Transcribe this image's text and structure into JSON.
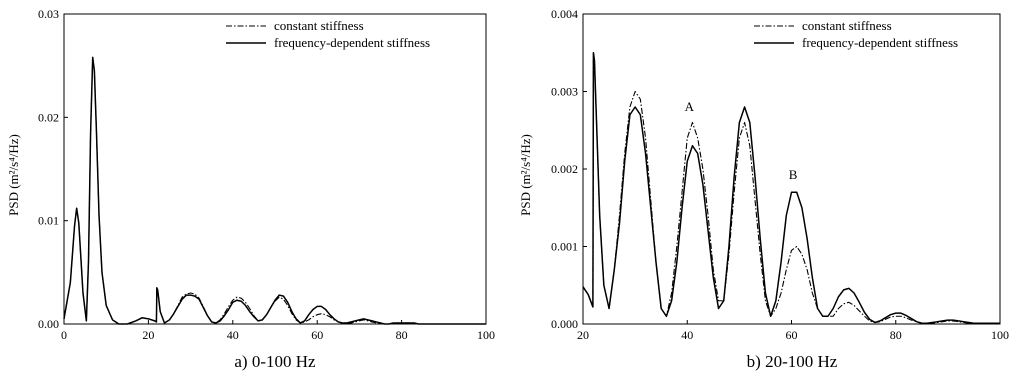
{
  "chart_data": [
    {
      "type": "line",
      "caption": "a) 0-100 Hz",
      "ylabel": "PSD (m²/s⁴/Hz)",
      "xlabel": "",
      "xlim": [
        0,
        100
      ],
      "ylim": [
        0,
        0.03
      ],
      "xticks": [
        0,
        20,
        40,
        60,
        80,
        100
      ],
      "yticks": [
        0.0,
        0.01,
        0.02,
        0.03
      ],
      "xtick_labels": [
        "0",
        "20",
        "40",
        "60",
        "80",
        "100"
      ],
      "ytick_labels": [
        "0.00",
        "0.01",
        "0.02",
        "0.03"
      ],
      "grid": false,
      "legend_position": "top-right",
      "series": [
        {
          "name": "constant stiffness",
          "style": "dash-dot",
          "x": [
            0,
            1.5,
            2.5,
            3.0,
            3.5,
            4.5,
            5.3,
            5.8,
            6.3,
            6.8,
            7.2,
            7.7,
            8.3,
            9.0,
            10.0,
            11.5,
            13.0,
            15.0,
            17.0,
            18.5,
            20.0,
            21.5,
            21.9,
            22.0,
            22.2,
            22.8,
            23.8,
            25.0,
            26.0,
            27.0,
            28.0,
            29.0,
            30.0,
            31.0,
            32.0,
            33.0,
            34.0,
            35.0,
            36.0,
            37.0,
            38.0,
            39.0,
            40.0,
            41.0,
            42.0,
            43.0,
            44.0,
            45.0,
            46.0,
            47.0,
            48.0,
            49.0,
            50.0,
            51.0,
            52.0,
            53.0,
            54.0,
            55.0,
            56.0,
            57.0,
            58.0,
            59.0,
            60.0,
            61.0,
            62.0,
            63.0,
            64.0,
            65.0,
            66.0,
            67.0,
            68.0,
            69.0,
            70.0,
            71.0,
            72.0,
            73.0,
            74.0,
            75.0,
            76.0,
            77.0,
            78.0,
            79.0,
            80.0,
            81.0,
            82.0,
            83.0,
            84.0,
            85.0,
            86.0,
            87.0,
            88.0,
            89.0,
            90.0,
            91.0,
            92.0,
            93.0,
            94.0,
            95.0,
            96.0,
            97.0,
            98.0,
            99.0,
            100.0
          ],
          "y": [
            0.0005,
            0.004,
            0.0095,
            0.0112,
            0.0098,
            0.003,
            0.0003,
            0.006,
            0.0185,
            0.0258,
            0.0245,
            0.0185,
            0.0105,
            0.005,
            0.0018,
            0.0004,
            0.0,
            0.0,
            0.0003,
            0.0006,
            0.0005,
            0.0003,
            0.0002,
            0.0035,
            0.0033,
            0.0012,
            0.0001,
            0.0004,
            0.001,
            0.0018,
            0.0026,
            0.0029,
            0.003,
            0.0029,
            0.0025,
            0.0017,
            0.0008,
            0.0002,
            0.0001,
            0.0004,
            0.001,
            0.0017,
            0.0023,
            0.0026,
            0.0025,
            0.0021,
            0.0015,
            0.0008,
            0.0003,
            0.0004,
            0.0009,
            0.0016,
            0.0022,
            0.0026,
            0.0024,
            0.0018,
            0.001,
            0.0004,
            0.0001,
            0.0002,
            0.0004,
            0.0007,
            0.0009,
            0.001,
            0.0009,
            0.0007,
            0.0004,
            0.0002,
            0.0001,
            0.0001,
            0.0001,
            0.0002,
            0.0003,
            0.0004,
            0.0003,
            0.0002,
            0.0001,
            0.0,
            0.0,
            0.0,
            0.0,
            0.0001,
            0.0001,
            0.0001,
            0.0001,
            0.0001,
            0.0,
            0.0,
            0.0,
            0.0,
            0.0,
            0.0,
            0.0,
            0.0,
            0.0,
            0.0,
            0.0,
            0.0,
            0.0,
            0.0,
            0.0,
            0.0,
            0.0
          ]
        },
        {
          "name": "frequency-dependent stiffness",
          "style": "solid",
          "x": [
            0,
            1.5,
            2.5,
            3.0,
            3.5,
            4.5,
            5.3,
            5.8,
            6.3,
            6.8,
            7.2,
            7.7,
            8.3,
            9.0,
            10.0,
            11.5,
            13.0,
            15.0,
            17.0,
            18.5,
            20.0,
            21.5,
            21.9,
            22.0,
            22.2,
            22.8,
            23.8,
            25.0,
            26.0,
            27.0,
            28.0,
            29.0,
            30.0,
            31.0,
            32.0,
            33.0,
            34.0,
            35.0,
            36.0,
            37.0,
            38.0,
            39.0,
            40.0,
            41.0,
            42.0,
            43.0,
            44.0,
            45.0,
            46.0,
            47.0,
            48.0,
            49.0,
            50.0,
            51.0,
            52.0,
            53.0,
            54.0,
            55.0,
            56.0,
            57.0,
            58.0,
            59.0,
            60.0,
            61.0,
            62.0,
            63.0,
            64.0,
            65.0,
            66.0,
            67.0,
            68.0,
            69.0,
            70.0,
            71.0,
            72.0,
            73.0,
            74.0,
            75.0,
            76.0,
            77.0,
            78.0,
            79.0,
            80.0,
            81.0,
            82.0,
            83.0,
            84.0,
            85.0,
            86.0,
            87.0,
            88.0,
            89.0,
            90.0,
            91.0,
            92.0,
            93.0,
            94.0,
            95.0,
            96.0,
            97.0,
            98.0,
            99.0,
            100.0
          ],
          "y": [
            0.0005,
            0.004,
            0.0095,
            0.0112,
            0.0098,
            0.003,
            0.0003,
            0.006,
            0.0185,
            0.0258,
            0.0245,
            0.0185,
            0.0105,
            0.005,
            0.0018,
            0.0004,
            0.0,
            0.0,
            0.0003,
            0.0006,
            0.0005,
            0.0003,
            0.0002,
            0.0035,
            0.0033,
            0.0012,
            0.0001,
            0.0004,
            0.001,
            0.0017,
            0.0024,
            0.0028,
            0.0028,
            0.0027,
            0.0024,
            0.0016,
            0.0008,
            0.0002,
            0.0001,
            0.0003,
            0.0008,
            0.0014,
            0.0021,
            0.0023,
            0.0022,
            0.0018,
            0.0012,
            0.0007,
            0.0003,
            0.0004,
            0.0009,
            0.0016,
            0.0023,
            0.0028,
            0.0027,
            0.0021,
            0.0012,
            0.0005,
            0.0001,
            0.0003,
            0.0009,
            0.0014,
            0.0017,
            0.0017,
            0.0014,
            0.0009,
            0.0005,
            0.0002,
            0.0001,
            0.0001,
            0.0002,
            0.0003,
            0.0004,
            0.0005,
            0.0004,
            0.0003,
            0.0002,
            0.0001,
            0.0,
            0.0,
            0.0001,
            0.0001,
            0.0001,
            0.0001,
            0.0001,
            0.0001,
            0.0,
            0.0,
            0.0,
            0.0,
            0.0,
            0.0,
            0.0,
            0.0,
            0.0,
            0.0,
            0.0,
            0.0,
            0.0,
            0.0,
            0.0,
            0.0,
            0.0
          ]
        }
      ],
      "annotations": []
    },
    {
      "type": "line",
      "caption": "b) 20-100 Hz",
      "ylabel": "PSD (m²/s⁴/Hz)",
      "xlabel": "",
      "xlim": [
        20,
        100
      ],
      "ylim": [
        0,
        0.004
      ],
      "xticks": [
        20,
        40,
        60,
        80,
        100
      ],
      "yticks": [
        0.0,
        0.001,
        0.002,
        0.003,
        0.004
      ],
      "xtick_labels": [
        "20",
        "40",
        "60",
        "80",
        "100"
      ],
      "ytick_labels": [
        "0.000",
        "0.001",
        "0.002",
        "0.003",
        "0.004"
      ],
      "grid": false,
      "legend_position": "top-right",
      "series": [
        {
          "name": "constant stiffness",
          "style": "dash-dot",
          "x": [
            20.0,
            21.0,
            21.9,
            22.0,
            22.2,
            22.6,
            23.2,
            24.0,
            25.0,
            26.0,
            27.0,
            28.0,
            29.0,
            30.0,
            31.0,
            32.0,
            33.0,
            34.0,
            35.0,
            36.0,
            37.0,
            38.0,
            39.0,
            40.0,
            41.0,
            42.0,
            43.0,
            44.0,
            45.0,
            46.0,
            47.0,
            48.0,
            49.0,
            50.0,
            51.0,
            52.0,
            53.0,
            54.0,
            55.0,
            56.0,
            57.0,
            58.0,
            59.0,
            60.0,
            61.0,
            62.0,
            63.0,
            64.0,
            65.0,
            66.0,
            67.0,
            68.0,
            69.0,
            70.0,
            71.0,
            72.0,
            73.0,
            74.0,
            75.0,
            76.0,
            77.0,
            78.0,
            79.0,
            80.0,
            81.0,
            82.0,
            83.0,
            84.0,
            85.0,
            86.0,
            87.0,
            88.0,
            89.0,
            90.0,
            91.0,
            92.0,
            93.0,
            94.0,
            95.0,
            96.0,
            97.0,
            98.0,
            99.0,
            100.0
          ],
          "y": [
            0.00048,
            0.00038,
            0.00022,
            0.0035,
            0.0034,
            0.0026,
            0.0014,
            0.0005,
            0.0002,
            0.0007,
            0.0014,
            0.0022,
            0.0028,
            0.003,
            0.0029,
            0.0024,
            0.0016,
            0.0008,
            0.0002,
            0.0001,
            0.0004,
            0.001,
            0.0017,
            0.0024,
            0.0026,
            0.0024,
            0.002,
            0.0014,
            0.0007,
            0.0003,
            0.0003,
            0.0009,
            0.0017,
            0.0024,
            0.0026,
            0.0023,
            0.0016,
            0.0009,
            0.0003,
            0.0001,
            0.0002,
            0.0004,
            0.0007,
            0.00095,
            0.001,
            0.0009,
            0.0007,
            0.0004,
            0.0002,
            0.0001,
            0.0001,
            0.0001,
            0.0002,
            0.00026,
            0.00028,
            0.00024,
            0.00017,
            0.0001,
            4e-05,
            2e-05,
            3e-05,
            6e-05,
            9e-05,
            0.0001,
            0.0001,
            8e-05,
            5e-05,
            3e-05,
            1e-05,
            0.0,
            1e-05,
            2e-05,
            3e-05,
            4e-05,
            4e-05,
            3e-05,
            2e-05,
            1e-05,
            1e-05,
            1e-05,
            1e-05,
            1e-05,
            1e-05,
            1e-05
          ]
        },
        {
          "name": "frequency-dependent stiffness",
          "style": "solid",
          "x": [
            20.0,
            21.0,
            21.9,
            22.0,
            22.2,
            22.6,
            23.2,
            24.0,
            25.0,
            26.0,
            27.0,
            28.0,
            29.0,
            30.0,
            31.0,
            32.0,
            33.0,
            34.0,
            35.0,
            36.0,
            37.0,
            38.0,
            39.0,
            40.0,
            41.0,
            42.0,
            43.0,
            44.0,
            45.0,
            46.0,
            47.0,
            48.0,
            49.0,
            50.0,
            51.0,
            52.0,
            53.0,
            54.0,
            55.0,
            56.0,
            57.0,
            58.0,
            59.0,
            60.0,
            61.0,
            62.0,
            63.0,
            64.0,
            65.0,
            66.0,
            67.0,
            68.0,
            69.0,
            70.0,
            71.0,
            72.0,
            73.0,
            74.0,
            75.0,
            76.0,
            77.0,
            78.0,
            79.0,
            80.0,
            81.0,
            82.0,
            83.0,
            84.0,
            85.0,
            86.0,
            87.0,
            88.0,
            89.0,
            90.0,
            91.0,
            92.0,
            93.0,
            94.0,
            95.0,
            96.0,
            97.0,
            98.0,
            99.0,
            100.0
          ],
          "y": [
            0.00048,
            0.00038,
            0.00022,
            0.0035,
            0.0034,
            0.0026,
            0.0014,
            0.0005,
            0.0002,
            0.0007,
            0.0013,
            0.0021,
            0.0027,
            0.0028,
            0.0027,
            0.0022,
            0.0015,
            0.0008,
            0.0002,
            0.0001,
            0.0003,
            0.0008,
            0.0015,
            0.0021,
            0.0023,
            0.0022,
            0.0018,
            0.0012,
            0.0006,
            0.0002,
            0.0003,
            0.001,
            0.0019,
            0.0026,
            0.0028,
            0.0026,
            0.0019,
            0.0011,
            0.0004,
            0.0001,
            0.0003,
            0.0008,
            0.0014,
            0.0017,
            0.0017,
            0.0015,
            0.0011,
            0.0006,
            0.0002,
            0.0001,
            0.0001,
            0.0002,
            0.00035,
            0.00044,
            0.00046,
            0.0004,
            0.00028,
            0.00015,
            6e-05,
            2e-05,
            4e-05,
            8e-05,
            0.00012,
            0.00014,
            0.00014,
            0.00011,
            7e-05,
            3e-05,
            1e-05,
            1e-05,
            2e-05,
            3e-05,
            4e-05,
            5e-05,
            5e-05,
            4e-05,
            3e-05,
            2e-05,
            1e-05,
            1e-05,
            1e-05,
            1e-05,
            1e-05,
            1e-05
          ]
        }
      ],
      "annotations": [
        {
          "text": "A",
          "x": 40.4,
          "y": 0.00275
        },
        {
          "text": "B",
          "x": 60.3,
          "y": 0.00187
        }
      ]
    }
  ]
}
